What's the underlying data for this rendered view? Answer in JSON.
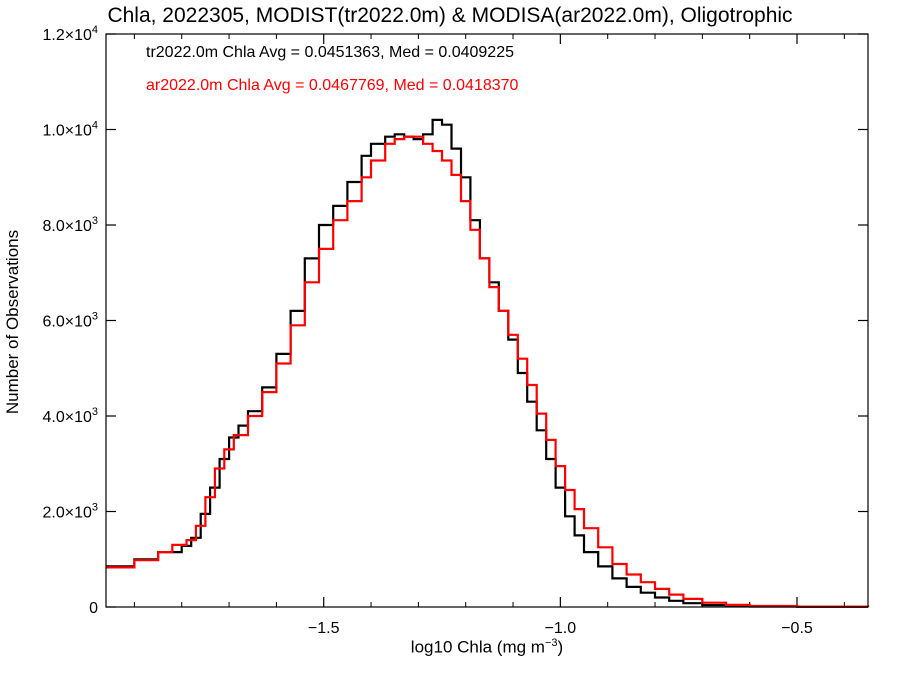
{
  "chart_data": {
    "type": "line",
    "title": "Chla, 2022305, MODIST(tr2022.0m) & MODISA(ar2022.0m), Oligotrophic",
    "xlabel": "log10 Chla (mg m",
    "xlabel_sup": "−3",
    "xlabel_tail": ")",
    "ylabel": "Number of Observations",
    "xlim": [
      -1.96,
      -0.35
    ],
    "ylim": [
      0,
      12000
    ],
    "x_ticks": [
      {
        "value": -1.5,
        "label": "−1.5"
      },
      {
        "value": -1.0,
        "label": "−1.0"
      },
      {
        "value": -0.5,
        "label": "−0.5"
      }
    ],
    "y_ticks": [
      {
        "value": 0,
        "mant": "0",
        "exp": ""
      },
      {
        "value": 2000,
        "mant": "2.0×10",
        "exp": "3"
      },
      {
        "value": 4000,
        "mant": "4.0×10",
        "exp": "3"
      },
      {
        "value": 6000,
        "mant": "6.0×10",
        "exp": "3"
      },
      {
        "value": 8000,
        "mant": "8.0×10",
        "exp": "3"
      },
      {
        "value": 10000,
        "mant": "1.0×10",
        "exp": "4"
      },
      {
        "value": 12000,
        "mant": "1.2×10",
        "exp": "4"
      }
    ],
    "grid": false,
    "step": true,
    "series": [
      {
        "name": "tr2022.0m",
        "color": "#000000",
        "annotation": "tr2022.0m Chla Avg = 0.0451363, Med = 0.0409225",
        "points": [
          [
            -1.96,
            850
          ],
          [
            -1.9,
            1000
          ],
          [
            -1.85,
            1150
          ],
          [
            -1.8,
            1280
          ],
          [
            -1.78,
            1450
          ],
          [
            -1.76,
            1950
          ],
          [
            -1.74,
            2500
          ],
          [
            -1.72,
            3100
          ],
          [
            -1.7,
            3550
          ],
          [
            -1.68,
            3800
          ],
          [
            -1.66,
            4100
          ],
          [
            -1.63,
            4600
          ],
          [
            -1.6,
            5300
          ],
          [
            -1.57,
            6200
          ],
          [
            -1.54,
            7300
          ],
          [
            -1.51,
            8000
          ],
          [
            -1.48,
            8400
          ],
          [
            -1.45,
            8900
          ],
          [
            -1.42,
            9450
          ],
          [
            -1.4,
            9700
          ],
          [
            -1.37,
            9850
          ],
          [
            -1.35,
            9900
          ],
          [
            -1.33,
            9850
          ],
          [
            -1.31,
            9800
          ],
          [
            -1.29,
            9900
          ],
          [
            -1.27,
            10200
          ],
          [
            -1.25,
            10100
          ],
          [
            -1.23,
            9600
          ],
          [
            -1.21,
            9000
          ],
          [
            -1.19,
            8100
          ],
          [
            -1.17,
            7300
          ],
          [
            -1.15,
            6800
          ],
          [
            -1.13,
            6200
          ],
          [
            -1.11,
            5600
          ],
          [
            -1.09,
            4900
          ],
          [
            -1.07,
            4300
          ],
          [
            -1.05,
            3700
          ],
          [
            -1.03,
            3100
          ],
          [
            -1.01,
            2500
          ],
          [
            -0.99,
            1900
          ],
          [
            -0.97,
            1500
          ],
          [
            -0.95,
            1150
          ],
          [
            -0.92,
            850
          ],
          [
            -0.89,
            600
          ],
          [
            -0.86,
            420
          ],
          [
            -0.83,
            300
          ],
          [
            -0.8,
            200
          ],
          [
            -0.77,
            130
          ],
          [
            -0.74,
            80
          ],
          [
            -0.7,
            40
          ],
          [
            -0.65,
            20
          ],
          [
            -0.6,
            10
          ],
          [
            -0.5,
            4
          ],
          [
            -0.35,
            0
          ]
        ]
      },
      {
        "name": "ar2022.0m",
        "color": "#ff0000",
        "annotation": "ar2022.0m Chla Avg = 0.0467769, Med = 0.0418370",
        "points": [
          [
            -1.96,
            830
          ],
          [
            -1.9,
            980
          ],
          [
            -1.85,
            1150
          ],
          [
            -1.82,
            1300
          ],
          [
            -1.79,
            1400
          ],
          [
            -1.77,
            1700
          ],
          [
            -1.75,
            2300
          ],
          [
            -1.73,
            2900
          ],
          [
            -1.71,
            3300
          ],
          [
            -1.69,
            3600
          ],
          [
            -1.66,
            4000
          ],
          [
            -1.63,
            4500
          ],
          [
            -1.6,
            5100
          ],
          [
            -1.57,
            5900
          ],
          [
            -1.54,
            6800
          ],
          [
            -1.51,
            7500
          ],
          [
            -1.48,
            8100
          ],
          [
            -1.45,
            8500
          ],
          [
            -1.42,
            9000
          ],
          [
            -1.4,
            9350
          ],
          [
            -1.37,
            9700
          ],
          [
            -1.35,
            9800
          ],
          [
            -1.33,
            9850
          ],
          [
            -1.31,
            9850
          ],
          [
            -1.29,
            9700
          ],
          [
            -1.27,
            9550
          ],
          [
            -1.25,
            9350
          ],
          [
            -1.23,
            9050
          ],
          [
            -1.21,
            8500
          ],
          [
            -1.19,
            7900
          ],
          [
            -1.17,
            7300
          ],
          [
            -1.15,
            6700
          ],
          [
            -1.13,
            6200
          ],
          [
            -1.11,
            5700
          ],
          [
            -1.09,
            5200
          ],
          [
            -1.07,
            4650
          ],
          [
            -1.05,
            4050
          ],
          [
            -1.03,
            3500
          ],
          [
            -1.01,
            2950
          ],
          [
            -0.99,
            2450
          ],
          [
            -0.97,
            2050
          ],
          [
            -0.95,
            1650
          ],
          [
            -0.92,
            1250
          ],
          [
            -0.89,
            900
          ],
          [
            -0.86,
            680
          ],
          [
            -0.83,
            520
          ],
          [
            -0.8,
            380
          ],
          [
            -0.77,
            260
          ],
          [
            -0.74,
            170
          ],
          [
            -0.7,
            90
          ],
          [
            -0.65,
            45
          ],
          [
            -0.6,
            20
          ],
          [
            -0.5,
            6
          ],
          [
            -0.35,
            0
          ]
        ]
      }
    ]
  }
}
